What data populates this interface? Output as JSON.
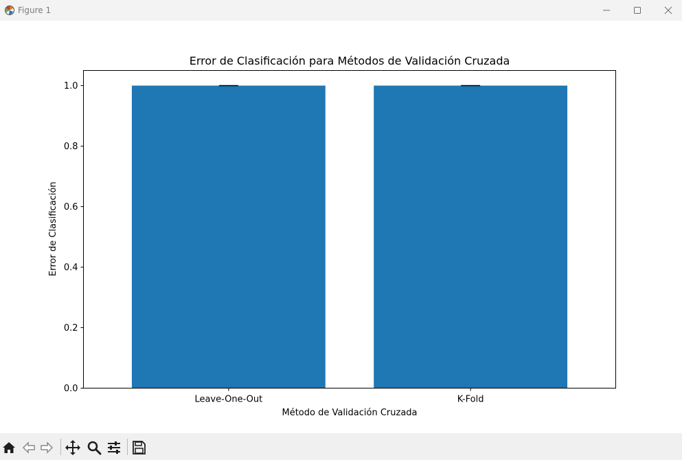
{
  "window": {
    "title": "Figure 1",
    "icons": {
      "app": "matplotlib-figure-icon",
      "minimize": "minimize-icon",
      "maximize": "maximize-icon",
      "close": "close-icon"
    }
  },
  "toolbar": {
    "tools": [
      {
        "name": "home",
        "icon": "home-icon"
      },
      {
        "name": "back",
        "icon": "arrow-left-icon"
      },
      {
        "name": "forward",
        "icon": "arrow-right-icon"
      },
      {
        "name": "pan",
        "icon": "move-icon"
      },
      {
        "name": "zoom",
        "icon": "magnifier-icon"
      },
      {
        "name": "configure-subplots",
        "icon": "sliders-icon"
      },
      {
        "name": "save",
        "icon": "floppy-disk-icon"
      }
    ]
  },
  "chart_data": {
    "type": "bar",
    "title": "Error de Clasificación para Métodos de Validación Cruzada",
    "xlabel": "Método de Validación Cruzada",
    "ylabel": "Error de Clasificación",
    "categories": [
      "Leave-One-Out",
      "K-Fold"
    ],
    "values": [
      1.0,
      1.0
    ],
    "error": [
      0.0,
      0.0
    ],
    "ylim": [
      0,
      1.05
    ],
    "yticks": [
      0.0,
      0.2,
      0.4,
      0.6,
      0.8,
      1.0
    ],
    "ytick_labels": [
      "0.0",
      "0.2",
      "0.4",
      "0.6",
      "0.8",
      "1.0"
    ],
    "grid": false,
    "bar_color": "#1f77b4",
    "errorbar_color": "#000000"
  }
}
